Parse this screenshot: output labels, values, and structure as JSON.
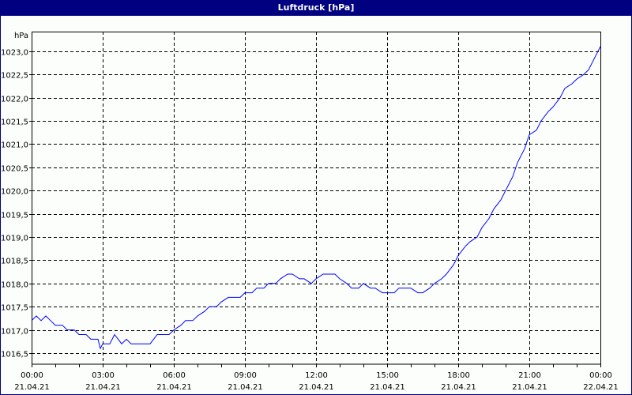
{
  "window": {
    "title": "Luftdruck [hPa]"
  },
  "chart_data": {
    "type": "line",
    "title": "Luftdruck [hPa]",
    "xlabel": "",
    "ylabel": "hPa",
    "ylim": [
      1016.3,
      1023.3
    ],
    "yticks": [
      1016.5,
      1017.0,
      1017.5,
      1018.0,
      1018.5,
      1019.0,
      1019.5,
      1020.0,
      1020.5,
      1021.0,
      1021.5,
      1022.0,
      1022.5,
      1023.0
    ],
    "ytick_labels": [
      "1016,5",
      "1017,0",
      "1017,5",
      "1018,0",
      "1018,5",
      "1019,0",
      "1019,5",
      "1020,0",
      "1020,5",
      "1021,0",
      "1021,5",
      "1022,0",
      "1022,5",
      "1023,0"
    ],
    "xticks": [
      {
        "time": "00:00",
        "date": "21.04.21"
      },
      {
        "time": "03:00",
        "date": "21.04.21"
      },
      {
        "time": "06:00",
        "date": "21.04.21"
      },
      {
        "time": "09:00",
        "date": "21.04.21"
      },
      {
        "time": "12:00",
        "date": "21.04.21"
      },
      {
        "time": "15:00",
        "date": "21.04.21"
      },
      {
        "time": "18:00",
        "date": "21.04.21"
      },
      {
        "time": "21:00",
        "date": "21.04.21"
      },
      {
        "time": "00:00",
        "date": "22.04.21"
      }
    ],
    "grid": true,
    "legend": null,
    "series": [
      {
        "name": "Luftdruck",
        "color": "#0000ff",
        "x_hours": [
          0,
          0.2,
          0.4,
          0.6,
          0.8,
          1.0,
          1.3,
          1.5,
          1.8,
          2.0,
          2.3,
          2.5,
          2.8,
          2.9,
          3.0,
          3.3,
          3.5,
          3.8,
          4.0,
          4.2,
          4.4,
          4.6,
          4.8,
          5.0,
          5.3,
          5.5,
          5.8,
          6.0,
          6.3,
          6.5,
          6.8,
          7.0,
          7.3,
          7.5,
          7.8,
          8.0,
          8.3,
          8.5,
          8.8,
          9.0,
          9.3,
          9.5,
          9.8,
          10.0,
          10.3,
          10.5,
          10.8,
          11.0,
          11.3,
          11.5,
          11.8,
          12.0,
          12.3,
          12.5,
          12.8,
          13.0,
          13.3,
          13.5,
          13.8,
          14.0,
          14.3,
          14.5,
          14.8,
          15.0,
          15.3,
          15.5,
          15.8,
          16.0,
          16.3,
          16.5,
          16.8,
          17.0,
          17.3,
          17.5,
          17.8,
          18.0,
          18.3,
          18.5,
          18.8,
          19.0,
          19.3,
          19.5,
          19.8,
          20.0,
          20.3,
          20.5,
          20.8,
          21.0,
          21.3,
          21.5,
          21.8,
          22.0,
          22.3,
          22.5,
          22.8,
          23.0,
          23.3,
          23.5,
          23.8,
          24.0
        ],
        "values": [
          1017.2,
          1017.3,
          1017.2,
          1017.3,
          1017.2,
          1017.1,
          1017.1,
          1017.0,
          1017.0,
          1016.9,
          1016.9,
          1016.8,
          1016.8,
          1016.6,
          1016.7,
          1016.7,
          1016.9,
          1016.7,
          1016.8,
          1016.7,
          1016.7,
          1016.7,
          1016.7,
          1016.7,
          1016.9,
          1016.9,
          1016.9,
          1017.0,
          1017.1,
          1017.2,
          1017.2,
          1017.3,
          1017.4,
          1017.5,
          1017.5,
          1017.6,
          1017.7,
          1017.7,
          1017.7,
          1017.8,
          1017.8,
          1017.9,
          1017.9,
          1018.0,
          1018.0,
          1018.1,
          1018.2,
          1018.2,
          1018.1,
          1018.1,
          1018.0,
          1018.1,
          1018.2,
          1018.2,
          1018.2,
          1018.1,
          1018.0,
          1017.9,
          1017.9,
          1018.0,
          1017.9,
          1017.9,
          1017.8,
          1017.8,
          1017.8,
          1017.9,
          1017.9,
          1017.9,
          1017.8,
          1017.8,
          1017.9,
          1018.0,
          1018.1,
          1018.2,
          1018.4,
          1018.6,
          1018.8,
          1018.9,
          1019.0,
          1019.2,
          1019.4,
          1019.6,
          1019.8,
          1020.0,
          1020.3,
          1020.6,
          1020.9,
          1021.2,
          1021.3,
          1021.5,
          1021.7,
          1021.8,
          1022.0,
          1022.2,
          1022.3,
          1022.4,
          1022.5,
          1022.6,
          1022.9,
          1023.1
        ]
      }
    ]
  }
}
